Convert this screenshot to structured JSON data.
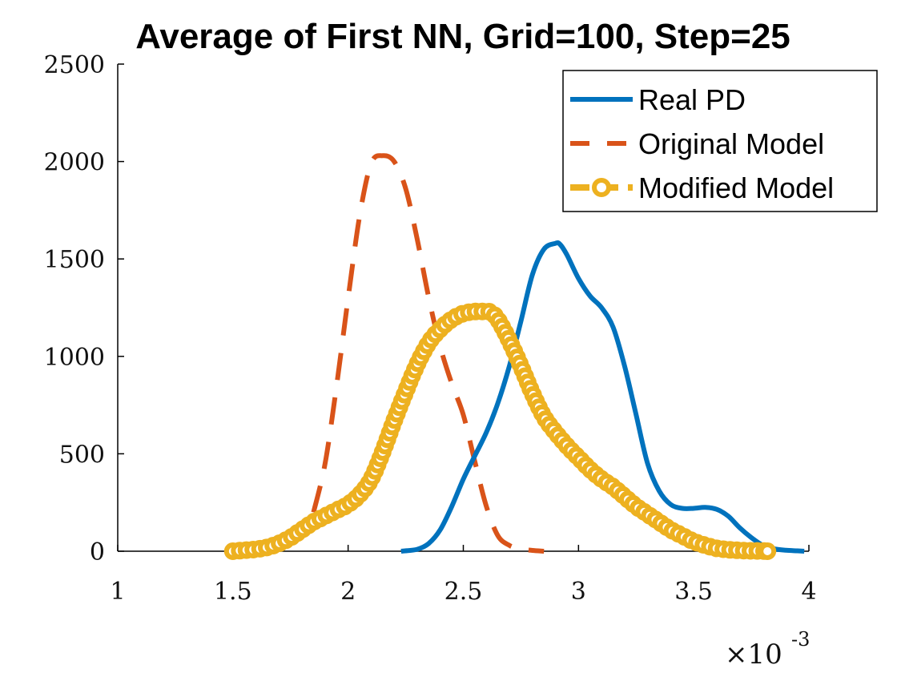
{
  "chart_data": {
    "type": "line",
    "title": "Average of First NN, Grid=100, Step=25",
    "xlabel": "",
    "ylabel": "",
    "x_multiplier": "×10",
    "x_multiplier_exp": "-3",
    "xlim": [
      1,
      4
    ],
    "ylim": [
      0,
      2500
    ],
    "xticks": [
      1,
      1.5,
      2,
      2.5,
      3,
      3.5,
      4
    ],
    "xtick_labels": [
      "1",
      "1.5",
      "2",
      "2.5",
      "3",
      "3.5",
      "4"
    ],
    "yticks": [
      0,
      500,
      1000,
      1500,
      2000,
      2500
    ],
    "ytick_labels": [
      "0",
      "500",
      "1000",
      "1500",
      "2000",
      "2500"
    ],
    "legend_position": "top-right",
    "grid": false,
    "series": [
      {
        "name": "Real PD",
        "color": "#0072BD",
        "style": "solid",
        "x": [
          2.23,
          2.3,
          2.35,
          2.4,
          2.45,
          2.5,
          2.55,
          2.6,
          2.65,
          2.7,
          2.75,
          2.8,
          2.85,
          2.9,
          2.92,
          2.95,
          3.0,
          3.05,
          3.1,
          3.15,
          3.2,
          3.25,
          3.3,
          3.35,
          3.4,
          3.45,
          3.5,
          3.55,
          3.6,
          3.65,
          3.7,
          3.75,
          3.8,
          3.85,
          3.9,
          3.95,
          3.98
        ],
        "y": [
          0,
          10,
          40,
          110,
          230,
          370,
          490,
          610,
          760,
          950,
          1180,
          1420,
          1550,
          1580,
          1575,
          1520,
          1400,
          1310,
          1250,
          1150,
          950,
          700,
          450,
          310,
          240,
          220,
          220,
          225,
          215,
          180,
          120,
          70,
          30,
          12,
          5,
          2,
          0
        ]
      },
      {
        "name": "Original Model",
        "color": "#D95319",
        "style": "dashed",
        "x": [
          1.85,
          1.9,
          1.95,
          2.0,
          2.05,
          2.1,
          2.15,
          2.2,
          2.25,
          2.3,
          2.35,
          2.4,
          2.45,
          2.5,
          2.55,
          2.6,
          2.65,
          2.7,
          2.75,
          2.8,
          2.85
        ],
        "y": [
          200,
          450,
          850,
          1300,
          1720,
          1990,
          2030,
          2000,
          1860,
          1600,
          1300,
          1050,
          860,
          700,
          460,
          230,
          80,
          30,
          12,
          4,
          0
        ]
      },
      {
        "name": "Modified Model",
        "color": "#EDB120",
        "style": "dashed-marker",
        "x": [
          1.5,
          1.55,
          1.6,
          1.65,
          1.7,
          1.75,
          1.8,
          1.85,
          1.9,
          1.95,
          2.0,
          2.05,
          2.1,
          2.15,
          2.2,
          2.25,
          2.3,
          2.35,
          2.4,
          2.45,
          2.5,
          2.55,
          2.6,
          2.62,
          2.65,
          2.7,
          2.75,
          2.8,
          2.85,
          2.9,
          2.95,
          3.0,
          3.05,
          3.1,
          3.15,
          3.2,
          3.25,
          3.3,
          3.35,
          3.4,
          3.45,
          3.5,
          3.55,
          3.6,
          3.65,
          3.7,
          3.75,
          3.8,
          3.82
        ],
        "y": [
          0,
          5,
          10,
          20,
          40,
          70,
          110,
          150,
          180,
          210,
          240,
          290,
          370,
          510,
          670,
          820,
          960,
          1070,
          1140,
          1190,
          1220,
          1230,
          1230,
          1225,
          1190,
          1080,
          950,
          810,
          690,
          610,
          540,
          480,
          420,
          370,
          330,
          280,
          230,
          190,
          150,
          110,
          80,
          50,
          30,
          15,
          8,
          4,
          2,
          1,
          0
        ]
      }
    ]
  }
}
